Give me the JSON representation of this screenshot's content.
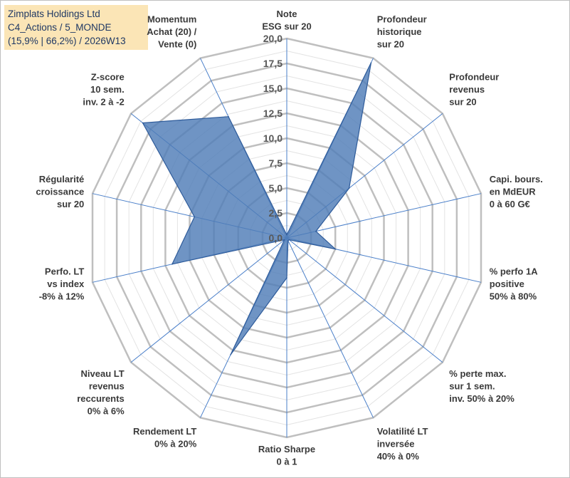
{
  "title_lines": [
    "Zimplats Holdings Ltd",
    "C4_Actions / 5_MONDE",
    "(15,9% | 66,2%) / 2026W13"
  ],
  "colors": {
    "fill": "#4f7cb7",
    "stroke": "#2e5b9a",
    "grid": "#bfbfbf",
    "spoke": "#4a7fc9",
    "title_bg": "#fbe5b6"
  },
  "chart_data": {
    "type": "radar",
    "title": "Zimplats Holdings Ltd",
    "rmin": 0,
    "rmax": 20,
    "ticks": [
      "0,0",
      "2,5",
      "5,0",
      "7,5",
      "10,0",
      "12,5",
      "15,0",
      "17,5",
      "20,0"
    ],
    "tick_values": [
      0,
      2.5,
      5,
      7.5,
      10,
      12.5,
      15,
      17.5,
      20
    ],
    "minor_step": 1.25,
    "axes": [
      {
        "label": [
          "Note",
          "ESG sur 20"
        ],
        "value": 0.3
      },
      {
        "label": [
          "Profondeur",
          "historique",
          "sur 20"
        ],
        "value": 19.5
      },
      {
        "label": [
          "Profondeur",
          "revenus",
          "sur 20"
        ],
        "value": 8.0
      },
      {
        "label": [
          "Capi. bours.",
          "en MdEUR",
          "0 à 60 G€"
        ],
        "value": 3.0
      },
      {
        "label": [
          "% perfo 1A",
          "positive",
          "50% à 80%"
        ],
        "value": 5.0
      },
      {
        "label": [
          "% perte max.",
          "sur 1 sem.",
          "inv. 50% à 20%"
        ],
        "value": 0.3
      },
      {
        "label": [
          "Volatilité LT",
          "inversée",
          "40% à 0%"
        ],
        "value": 0.3
      },
      {
        "label": [
          "Ratio Sharpe",
          "0 à 1"
        ],
        "value": 4.0
      },
      {
        "label": [
          "Rendement LT",
          "0% à 20%"
        ],
        "value": 13.0
      },
      {
        "label": [
          "Niveau LT",
          "revenus",
          "reccurents",
          "0% à 6%"
        ],
        "value": 0.3
      },
      {
        "label": [
          "Perfo. LT",
          "vs index",
          "-8% à 12%"
        ],
        "value": 11.8
      },
      {
        "label": [
          "Régularité",
          "croissance",
          "sur 20"
        ],
        "value": 9.5
      },
      {
        "label": [
          "Z-score",
          "10 sem.",
          "inv. 2 à -2"
        ],
        "value": 18.5
      },
      {
        "label": [
          "Momentum",
          "Achat (20) /",
          "Vente (0)"
        ],
        "value": 13.5
      }
    ]
  }
}
